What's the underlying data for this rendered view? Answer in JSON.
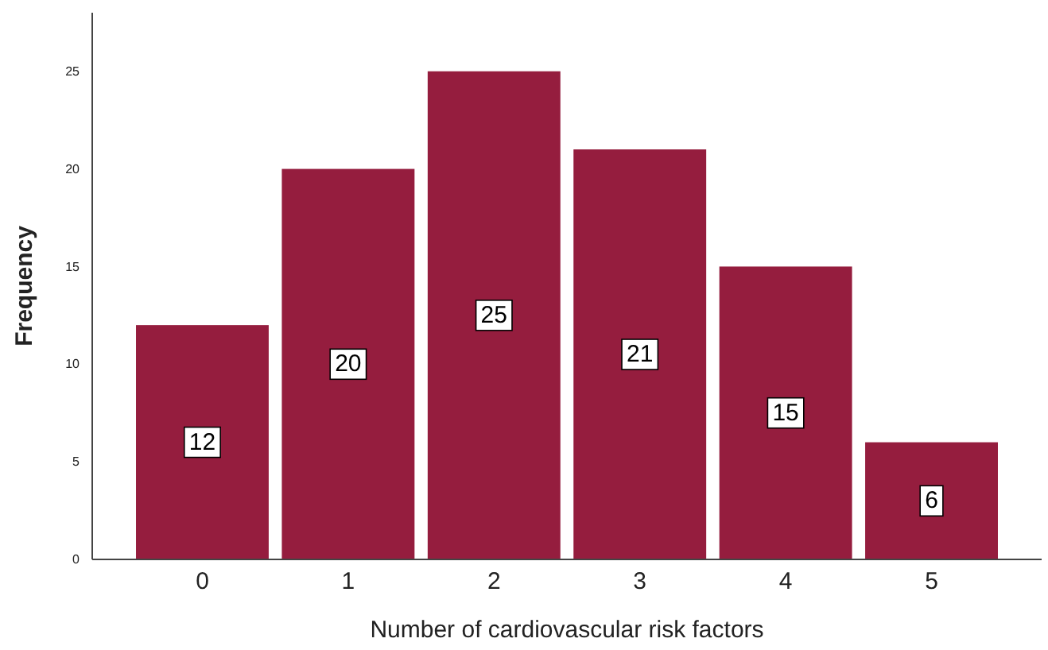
{
  "chart_data": {
    "type": "bar",
    "xlabel": "Number of cardiovascular risk factors",
    "ylabel": "Frequency",
    "categories": [
      "0",
      "1",
      "2",
      "3",
      "4",
      "5"
    ],
    "values": [
      12,
      20,
      25,
      21,
      15,
      6
    ],
    "color": "#951d3e",
    "ylim": [
      0,
      28
    ],
    "yticks": [
      0,
      5,
      10,
      15,
      20,
      25
    ],
    "data_labels": true,
    "grid": false
  }
}
